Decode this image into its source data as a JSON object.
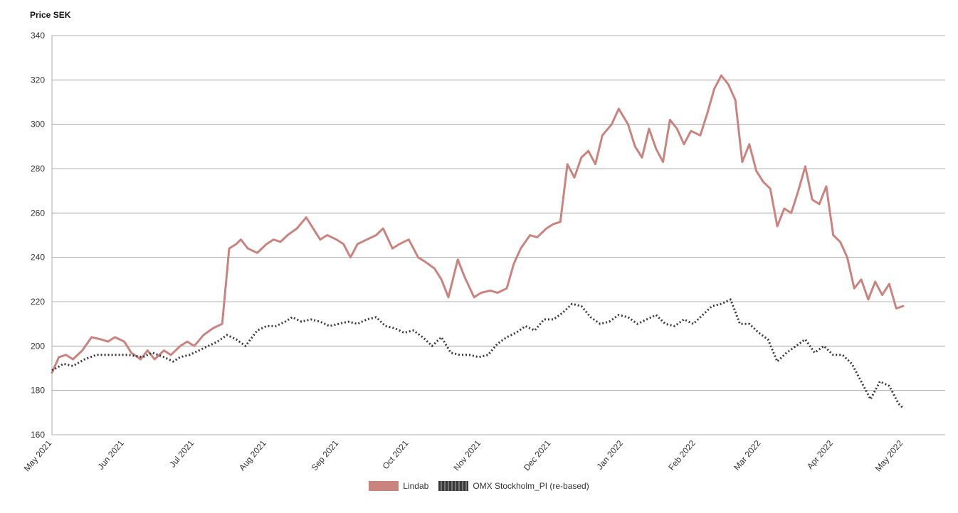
{
  "chart_data": {
    "type": "line",
    "ylabel": "Price SEK",
    "ylim": [
      160,
      340
    ],
    "yticks": [
      160,
      180,
      200,
      220,
      240,
      260,
      280,
      300,
      320,
      340
    ],
    "xlim": [
      "2021-05-01",
      "2022-05-19"
    ],
    "xticks": [
      {
        "date": "2021-05-01",
        "label": "May 2021"
      },
      {
        "date": "2021-06-01",
        "label": "Jun 2021"
      },
      {
        "date": "2021-07-01",
        "label": "Jul 2021"
      },
      {
        "date": "2021-08-01",
        "label": "Aug 2021"
      },
      {
        "date": "2021-09-01",
        "label": "Sep 2021"
      },
      {
        "date": "2021-10-01",
        "label": "Oct 2021"
      },
      {
        "date": "2021-11-01",
        "label": "Nov 2021"
      },
      {
        "date": "2021-12-01",
        "label": "Dec 2021"
      },
      {
        "date": "2022-01-01",
        "label": "Jan 2022"
      },
      {
        "date": "2022-02-01",
        "label": "Feb 2022"
      },
      {
        "date": "2022-03-01",
        "label": "Mar 2022"
      },
      {
        "date": "2022-04-01",
        "label": "Apr 2022"
      },
      {
        "date": "2022-05-01",
        "label": "May 2022"
      }
    ],
    "grid": "horizontal",
    "legend_position": "bottom",
    "series": [
      {
        "name": "Lindab",
        "color": "#c9847f",
        "style": "solid",
        "points": [
          [
            "2021-05-01",
            188
          ],
          [
            "2021-05-04",
            195
          ],
          [
            "2021-05-07",
            196
          ],
          [
            "2021-05-10",
            194
          ],
          [
            "2021-05-14",
            198
          ],
          [
            "2021-05-18",
            204
          ],
          [
            "2021-05-22",
            203
          ],
          [
            "2021-05-25",
            202
          ],
          [
            "2021-05-28",
            204
          ],
          [
            "2021-06-01",
            202
          ],
          [
            "2021-06-04",
            197
          ],
          [
            "2021-06-08",
            194
          ],
          [
            "2021-06-11",
            198
          ],
          [
            "2021-06-14",
            194
          ],
          [
            "2021-06-18",
            198
          ],
          [
            "2021-06-21",
            196
          ],
          [
            "2021-06-25",
            200
          ],
          [
            "2021-06-28",
            202
          ],
          [
            "2021-07-01",
            200
          ],
          [
            "2021-07-05",
            205
          ],
          [
            "2021-07-09",
            208
          ],
          [
            "2021-07-13",
            210
          ],
          [
            "2021-07-16",
            244
          ],
          [
            "2021-07-19",
            246
          ],
          [
            "2021-07-21",
            248
          ],
          [
            "2021-07-24",
            244
          ],
          [
            "2021-07-28",
            242
          ],
          [
            "2021-08-01",
            246
          ],
          [
            "2021-08-04",
            248
          ],
          [
            "2021-08-07",
            247
          ],
          [
            "2021-08-10",
            250
          ],
          [
            "2021-08-14",
            253
          ],
          [
            "2021-08-18",
            258
          ],
          [
            "2021-08-21",
            253
          ],
          [
            "2021-08-24",
            248
          ],
          [
            "2021-08-27",
            250
          ],
          [
            "2021-08-31",
            248
          ],
          [
            "2021-09-03",
            246
          ],
          [
            "2021-09-06",
            240
          ],
          [
            "2021-09-09",
            246
          ],
          [
            "2021-09-13",
            248
          ],
          [
            "2021-09-17",
            250
          ],
          [
            "2021-09-20",
            253
          ],
          [
            "2021-09-24",
            244
          ],
          [
            "2021-09-27",
            246
          ],
          [
            "2021-10-01",
            248
          ],
          [
            "2021-10-05",
            240
          ],
          [
            "2021-10-08",
            238
          ],
          [
            "2021-10-12",
            235
          ],
          [
            "2021-10-15",
            230
          ],
          [
            "2021-10-18",
            222
          ],
          [
            "2021-10-22",
            239
          ],
          [
            "2021-10-25",
            231
          ],
          [
            "2021-10-29",
            222
          ],
          [
            "2021-11-01",
            224
          ],
          [
            "2021-11-05",
            225
          ],
          [
            "2021-11-08",
            224
          ],
          [
            "2021-11-12",
            226
          ],
          [
            "2021-11-15",
            237
          ],
          [
            "2021-11-18",
            244
          ],
          [
            "2021-11-22",
            250
          ],
          [
            "2021-11-25",
            249
          ],
          [
            "2021-11-29",
            253
          ],
          [
            "2021-12-02",
            255
          ],
          [
            "2021-12-05",
            256
          ],
          [
            "2021-12-08",
            282
          ],
          [
            "2021-12-11",
            276
          ],
          [
            "2021-12-14",
            285
          ],
          [
            "2021-12-17",
            288
          ],
          [
            "2021-12-20",
            282
          ],
          [
            "2021-12-23",
            295
          ],
          [
            "2021-12-27",
            300
          ],
          [
            "2021-12-30",
            307
          ],
          [
            "2022-01-03",
            300
          ],
          [
            "2022-01-06",
            290
          ],
          [
            "2022-01-09",
            285
          ],
          [
            "2022-01-12",
            298
          ],
          [
            "2022-01-15",
            289
          ],
          [
            "2022-01-18",
            283
          ],
          [
            "2022-01-21",
            302
          ],
          [
            "2022-01-24",
            298
          ],
          [
            "2022-01-27",
            291
          ],
          [
            "2022-01-30",
            297
          ],
          [
            "2022-02-03",
            295
          ],
          [
            "2022-02-06",
            305
          ],
          [
            "2022-02-09",
            316
          ],
          [
            "2022-02-12",
            322
          ],
          [
            "2022-02-15",
            318
          ],
          [
            "2022-02-18",
            311
          ],
          [
            "2022-02-21",
            283
          ],
          [
            "2022-02-24",
            291
          ],
          [
            "2022-02-27",
            279
          ],
          [
            "2022-03-02",
            274
          ],
          [
            "2022-03-05",
            271
          ],
          [
            "2022-03-08",
            254
          ],
          [
            "2022-03-11",
            262
          ],
          [
            "2022-03-14",
            260
          ],
          [
            "2022-03-17",
            270
          ],
          [
            "2022-03-20",
            281
          ],
          [
            "2022-03-23",
            266
          ],
          [
            "2022-03-26",
            264
          ],
          [
            "2022-03-29",
            272
          ],
          [
            "2022-04-01",
            250
          ],
          [
            "2022-04-04",
            247
          ],
          [
            "2022-04-07",
            240
          ],
          [
            "2022-04-10",
            226
          ],
          [
            "2022-04-13",
            230
          ],
          [
            "2022-04-16",
            221
          ],
          [
            "2022-04-19",
            229
          ],
          [
            "2022-04-22",
            223
          ],
          [
            "2022-04-25",
            228
          ],
          [
            "2022-04-28",
            217
          ],
          [
            "2022-05-01",
            218
          ]
        ]
      },
      {
        "name": "OMX Stockholm_PI (re-based)",
        "color": "#3a3a3a",
        "style": "dotted",
        "points": [
          [
            "2021-05-01",
            189
          ],
          [
            "2021-05-06",
            192
          ],
          [
            "2021-05-10",
            191
          ],
          [
            "2021-05-15",
            194
          ],
          [
            "2021-05-20",
            196
          ],
          [
            "2021-05-27",
            196
          ],
          [
            "2021-06-03",
            196
          ],
          [
            "2021-06-09",
            195
          ],
          [
            "2021-06-13",
            197
          ],
          [
            "2021-06-18",
            195
          ],
          [
            "2021-06-22",
            193
          ],
          [
            "2021-06-25",
            195
          ],
          [
            "2021-06-29",
            196
          ],
          [
            "2021-07-03",
            198
          ],
          [
            "2021-07-07",
            200
          ],
          [
            "2021-07-11",
            202
          ],
          [
            "2021-07-15",
            205
          ],
          [
            "2021-07-19",
            203
          ],
          [
            "2021-07-23",
            200
          ],
          [
            "2021-07-28",
            207
          ],
          [
            "2021-08-01",
            209
          ],
          [
            "2021-08-05",
            209
          ],
          [
            "2021-08-09",
            211
          ],
          [
            "2021-08-12",
            213
          ],
          [
            "2021-08-16",
            211
          ],
          [
            "2021-08-20",
            212
          ],
          [
            "2021-08-24",
            211
          ],
          [
            "2021-08-28",
            209
          ],
          [
            "2021-09-01",
            210
          ],
          [
            "2021-09-05",
            211
          ],
          [
            "2021-09-09",
            210
          ],
          [
            "2021-09-13",
            212
          ],
          [
            "2021-09-17",
            213
          ],
          [
            "2021-09-21",
            209
          ],
          [
            "2021-09-25",
            208
          ],
          [
            "2021-09-29",
            206
          ],
          [
            "2021-10-03",
            207
          ],
          [
            "2021-10-07",
            204
          ],
          [
            "2021-10-11",
            200
          ],
          [
            "2021-10-15",
            204
          ],
          [
            "2021-10-19",
            197
          ],
          [
            "2021-10-23",
            196
          ],
          [
            "2021-10-27",
            196
          ],
          [
            "2021-10-31",
            195
          ],
          [
            "2021-11-04",
            196
          ],
          [
            "2021-11-08",
            201
          ],
          [
            "2021-11-12",
            204
          ],
          [
            "2021-11-16",
            206
          ],
          [
            "2021-11-20",
            209
          ],
          [
            "2021-11-24",
            207
          ],
          [
            "2021-11-28",
            212
          ],
          [
            "2021-12-02",
            212
          ],
          [
            "2021-12-06",
            215
          ],
          [
            "2021-12-10",
            219
          ],
          [
            "2021-12-14",
            218
          ],
          [
            "2021-12-18",
            213
          ],
          [
            "2021-12-22",
            210
          ],
          [
            "2021-12-26",
            211
          ],
          [
            "2021-12-30",
            214
          ],
          [
            "2022-01-03",
            213
          ],
          [
            "2022-01-07",
            210
          ],
          [
            "2022-01-11",
            212
          ],
          [
            "2022-01-15",
            214
          ],
          [
            "2022-01-19",
            210
          ],
          [
            "2022-01-23",
            209
          ],
          [
            "2022-01-27",
            212
          ],
          [
            "2022-01-31",
            210
          ],
          [
            "2022-02-04",
            214
          ],
          [
            "2022-02-08",
            218
          ],
          [
            "2022-02-12",
            219
          ],
          [
            "2022-02-16",
            221
          ],
          [
            "2022-02-20",
            210
          ],
          [
            "2022-02-24",
            210
          ],
          [
            "2022-02-28",
            206
          ],
          [
            "2022-03-04",
            203
          ],
          [
            "2022-03-08",
            193
          ],
          [
            "2022-03-12",
            197
          ],
          [
            "2022-03-16",
            200
          ],
          [
            "2022-03-20",
            203
          ],
          [
            "2022-03-24",
            197
          ],
          [
            "2022-03-28",
            200
          ],
          [
            "2022-04-01",
            196
          ],
          [
            "2022-04-05",
            196
          ],
          [
            "2022-04-09",
            192
          ],
          [
            "2022-04-13",
            184
          ],
          [
            "2022-04-17",
            176
          ],
          [
            "2022-04-21",
            184
          ],
          [
            "2022-04-25",
            182
          ],
          [
            "2022-04-29",
            174
          ],
          [
            "2022-05-01",
            172
          ]
        ]
      }
    ]
  },
  "legend": {
    "items": [
      {
        "label": "Lindab",
        "style": "solid",
        "color": "#c9847f"
      },
      {
        "label": "OMX Stockholm_PI (re-based)",
        "style": "dotted",
        "color": "#3a3a3a"
      }
    ]
  }
}
